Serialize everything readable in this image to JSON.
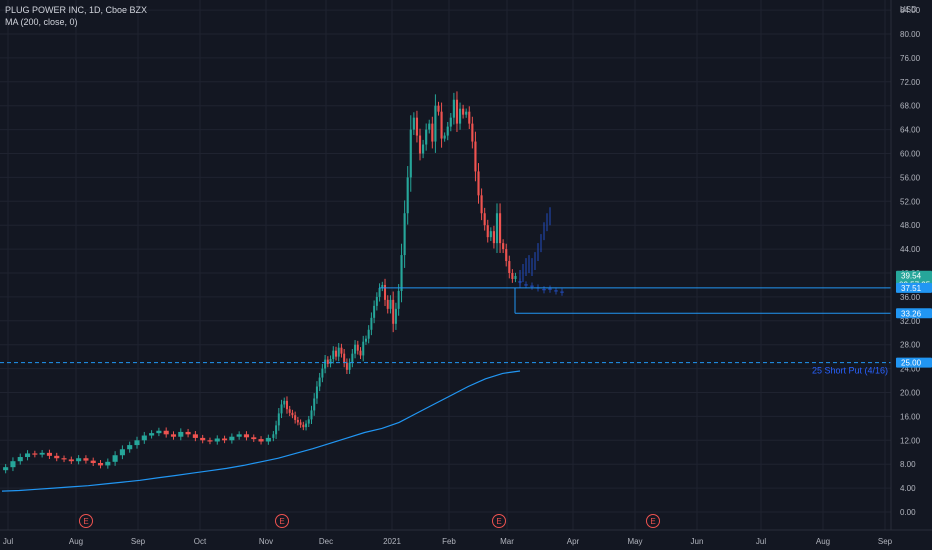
{
  "header": {
    "symbol_line": "PLUG POWER INC, 1D, Cboe BZX",
    "indicator_line": "MA (200, close, 0)"
  },
  "colors": {
    "background": "#131722",
    "grid": "#1f2330",
    "up": "#26a69a",
    "down": "#ef5350",
    "ma": "#2196f3",
    "level_line": "#2196f3",
    "projection": "#2962ff"
  },
  "chart_data": {
    "type": "candlestick",
    "currency": "USD",
    "y_ticks": [
      0,
      4,
      8,
      12,
      16,
      20,
      24,
      28,
      32,
      36,
      40,
      44,
      48,
      52,
      56,
      60,
      64,
      68,
      72,
      76,
      80,
      84
    ],
    "ylim": [
      -2,
      84
    ],
    "x_labels": [
      "Jul",
      "Aug",
      "Sep",
      "Oct",
      "Nov",
      "Dec",
      "2021",
      "Feb",
      "Mar",
      "Apr",
      "May",
      "Jun",
      "Jul",
      "Aug",
      "Sep"
    ],
    "earnings_markers": [
      "Aug",
      "Nov",
      "Mar",
      "May"
    ],
    "earnings_label": "E",
    "price_tags": [
      {
        "value": "39.54",
        "sub": "02:57:25",
        "color": "#26a69a",
        "price": 39.54
      },
      {
        "value": "37.51",
        "color": "#2196f3",
        "price": 37.51
      },
      {
        "value": "33.26",
        "color": "#2196f3",
        "price": 33.26
      },
      {
        "value": "25.00",
        "color": "#2196f3",
        "price": 25.0
      }
    ],
    "horizontal_levels": [
      37.51,
      33.26
    ],
    "dashed_level": {
      "price": 25.0,
      "label": "25 Short Put (4/16)"
    },
    "price_path": [
      [
        7.5,
        8.5,
        9.2,
        9.8,
        9.6,
        9.9,
        9.4,
        9.0,
        8.8,
        8.5,
        9.0,
        8.6,
        8.2,
        7.8,
        8.4,
        9.5,
        10.5,
        11.2,
        12.0,
        12.8,
        13.2,
        13.6,
        13.0,
        12.6,
        13.4,
        13.0,
        12.4,
        12.0,
        11.8,
        12.3,
        12.0,
        12.6,
        13.0,
        12.5,
        12.2,
        11.8,
        12.4
      ],
      [
        13.0,
        14.5,
        16.5,
        18.0,
        18.6,
        17.2,
        16.6,
        16.2,
        15.4,
        15.0,
        14.6,
        14.2,
        14.8,
        15.5,
        17.0,
        19.0,
        21.0,
        22.5,
        24.0,
        25.5,
        24.8,
        25.6,
        27.0,
        26.0,
        27.5,
        26.5,
        25.0,
        23.8,
        25.0,
        26.5,
        28.0,
        27.0,
        26.2,
        28.5,
        29.0,
        30.5,
        32.5,
        34.5,
        36.0,
        37.5,
        38.0,
        35.5,
        34.0,
        35.5,
        31.5,
        34.0,
        37.0
      ],
      [
        43.0,
        50.0,
        56.0,
        64.0,
        66.0,
        63.0,
        60.0,
        61.5,
        64.0,
        65.0,
        62.0,
        68.0,
        67.0,
        62.5,
        63.0,
        64.5,
        66.0,
        69.0,
        65.0,
        67.5,
        66.5,
        67.0,
        65.0,
        62.0,
        57.0,
        53.0,
        50.0,
        48.0,
        46.0,
        47.0,
        45.0,
        50.0,
        45.0,
        44.0,
        42.0,
        40.0,
        39.0,
        39.5
      ]
    ],
    "projection_path": [
      39.0,
      40.0,
      41.0,
      41.5,
      41.0,
      42.0,
      43.5,
      45.0,
      47.0,
      48.5,
      49.5
    ],
    "projection_tail": [
      38.5,
      38.0,
      37.8,
      37.5,
      37.2,
      37.3,
      37.0,
      36.8
    ],
    "ma_values": [
      3.5,
      3.6,
      3.8,
      4.0,
      4.2,
      4.4,
      4.7,
      5.0,
      5.3,
      5.7,
      6.1,
      6.5,
      6.9,
      7.3,
      7.8,
      8.4,
      9.0,
      9.8,
      10.6,
      11.5,
      12.4,
      13.3,
      14.0,
      15.0,
      16.5,
      18.0,
      19.5,
      21.0,
      22.3,
      23.2,
      23.6
    ]
  }
}
